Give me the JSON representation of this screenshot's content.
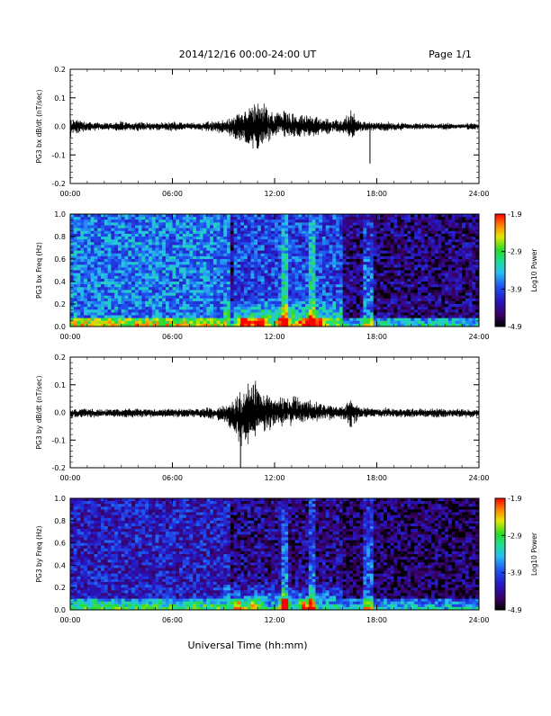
{
  "header": {
    "title": "2014/12/16  00:00-24:00 UT",
    "page": "Page 1/1"
  },
  "chart_data": [
    {
      "type": "line",
      "ylabel": "PG3 bx dB/dt (nT/sec)",
      "ylim": [
        -0.2,
        0.2
      ],
      "yticks": [
        "0.2",
        "0.1",
        "0.0",
        "-0.1",
        "-0.2"
      ],
      "xlim": [
        "00:00",
        "24:00"
      ],
      "xticks": [
        "00:00",
        "06:00",
        "12:00",
        "18:00",
        "24:00"
      ],
      "series": [
        {
          "color": "#000000",
          "x_hours": [
            0,
            0.5,
            1,
            1.5,
            2,
            2.5,
            3,
            3.5,
            4,
            4.5,
            5,
            5.5,
            6,
            6.5,
            7,
            7.5,
            8,
            8.5,
            9,
            9.5,
            10,
            10.5,
            11,
            11.5,
            12,
            12.5,
            13,
            13.5,
            14,
            14.5,
            15,
            15.5,
            16,
            16.5,
            17,
            17.5,
            18,
            18.5,
            19,
            19.5,
            20,
            20.5,
            21,
            21.5,
            22,
            22.5,
            23,
            23.5,
            24
          ],
          "env_hi": [
            0.035,
            0.03,
            0.02,
            0.015,
            0.015,
            0.015,
            0.02,
            0.015,
            0.02,
            0.015,
            0.015,
            0.015,
            0.02,
            0.015,
            0.015,
            0.015,
            0.02,
            0.02,
            0.025,
            0.035,
            0.06,
            0.08,
            0.1,
            0.08,
            0.06,
            0.065,
            0.05,
            0.04,
            0.05,
            0.04,
            0.03,
            0.03,
            0.025,
            0.065,
            0.02,
            0.02,
            0.015,
            0.02,
            0.015,
            0.015,
            0.01,
            0.015,
            0.01,
            0.01,
            0.015,
            0.01,
            0.01,
            0.015,
            0.01
          ],
          "env_lo": [
            -0.05,
            -0.025,
            -0.02,
            -0.015,
            -0.015,
            -0.015,
            -0.025,
            -0.015,
            -0.02,
            -0.015,
            -0.015,
            -0.015,
            -0.02,
            -0.015,
            -0.015,
            -0.015,
            -0.02,
            -0.02,
            -0.03,
            -0.04,
            -0.065,
            -0.08,
            -0.09,
            -0.07,
            -0.05,
            -0.04,
            -0.05,
            -0.04,
            -0.045,
            -0.04,
            -0.03,
            -0.025,
            -0.025,
            -0.06,
            -0.02,
            -0.02,
            -0.015,
            -0.02,
            -0.015,
            -0.015,
            -0.01,
            -0.015,
            -0.01,
            -0.01,
            -0.015,
            -0.01,
            -0.01,
            -0.015,
            -0.01
          ],
          "annotations": [
            {
              "x_hour": 17.6,
              "y": -0.13
            }
          ]
        }
      ]
    },
    {
      "type": "heatmap",
      "ylabel": "PG3 bx Freq (Hz)",
      "ylim": [
        0.0,
        1.0
      ],
      "yticks": [
        "1.0",
        "0.8",
        "0.6",
        "0.4",
        "0.2",
        "0.0"
      ],
      "xlim": [
        "00:00",
        "24:00"
      ],
      "xticks": [
        "00:00",
        "06:00",
        "12:00",
        "18:00",
        "24:00"
      ],
      "colorbar": {
        "label": "Log10 Power",
        "ticks": [
          "-1.9",
          "-2.9",
          "-3.9",
          "-4.9"
        ],
        "range": [
          -4.9,
          -1.9
        ]
      },
      "features": {
        "quiet_level": -3.7,
        "night_level": -4.5,
        "transition_hour": 9.5,
        "hotspot_hours": [
          10.2,
          11.0,
          12.5,
          13.8,
          14.6
        ],
        "bursts_hours": [
          12.6,
          14.2,
          17.5
        ],
        "low_freq_band_max_hz": 0.08
      }
    },
    {
      "type": "line",
      "ylabel": "PG3 by dB/dt (nT/sec)",
      "ylim": [
        -0.2,
        0.2
      ],
      "yticks": [
        "0.2",
        "0.1",
        "0.0",
        "-0.1",
        "-0.2"
      ],
      "xlim": [
        "00:00",
        "24:00"
      ],
      "xticks": [
        "00:00",
        "06:00",
        "12:00",
        "18:00",
        "24:00"
      ],
      "series": [
        {
          "color": "#000000",
          "x_hours": [
            0,
            0.5,
            1,
            1.5,
            2,
            2.5,
            3,
            3.5,
            4,
            4.5,
            5,
            5.5,
            6,
            6.5,
            7,
            7.5,
            8,
            8.5,
            9,
            9.5,
            10,
            10.5,
            11,
            11.5,
            12,
            12.5,
            13,
            13.5,
            14,
            14.5,
            15,
            15.5,
            16,
            16.5,
            17,
            17.5,
            18,
            18.5,
            19,
            19.5,
            20,
            20.5,
            21,
            21.5,
            22,
            22.5,
            23,
            23.5,
            24
          ],
          "env_hi": [
            0.015,
            0.015,
            0.015,
            0.015,
            0.015,
            0.015,
            0.015,
            0.015,
            0.015,
            0.015,
            0.015,
            0.015,
            0.015,
            0.015,
            0.015,
            0.015,
            0.02,
            0.02,
            0.03,
            0.05,
            0.09,
            0.12,
            0.12,
            0.09,
            0.07,
            0.06,
            0.07,
            0.05,
            0.05,
            0.04,
            0.03,
            0.03,
            0.025,
            0.06,
            0.02,
            0.02,
            0.015,
            0.02,
            0.015,
            0.015,
            0.015,
            0.015,
            0.015,
            0.015,
            0.015,
            0.015,
            0.015,
            0.015,
            0.01
          ],
          "env_lo": [
            -0.025,
            -0.02,
            -0.02,
            -0.02,
            -0.02,
            -0.02,
            -0.02,
            -0.02,
            -0.02,
            -0.02,
            -0.02,
            -0.02,
            -0.02,
            -0.02,
            -0.02,
            -0.02,
            -0.025,
            -0.03,
            -0.04,
            -0.07,
            -0.15,
            -0.12,
            -0.1,
            -0.08,
            -0.06,
            -0.05,
            -0.05,
            -0.04,
            -0.04,
            -0.035,
            -0.03,
            -0.03,
            -0.03,
            -0.06,
            -0.025,
            -0.02,
            -0.02,
            -0.02,
            -0.02,
            -0.02,
            -0.02,
            -0.02,
            -0.02,
            -0.02,
            -0.02,
            -0.02,
            -0.02,
            -0.02,
            -0.02
          ],
          "annotations": [
            {
              "x_hour": 10.0,
              "y": -0.2
            }
          ]
        }
      ]
    },
    {
      "type": "heatmap",
      "ylabel": "PG3 by Freq (Hz)",
      "ylim": [
        0.0,
        1.0
      ],
      "yticks": [
        "1.0",
        "0.8",
        "0.6",
        "0.4",
        "0.2",
        "0.0"
      ],
      "xlim": [
        "00:00",
        "24:00"
      ],
      "xticks": [
        "00:00",
        "06:00",
        "12:00",
        "18:00",
        "24:00"
      ],
      "colorbar": {
        "label": "Log10 Power",
        "ticks": [
          "-1.9",
          "-2.9",
          "-3.9",
          "-4.9"
        ],
        "range": [
          -4.9,
          -1.9
        ]
      },
      "features": {
        "quiet_level": -4.2,
        "night_level": -4.6,
        "transition_hour": 9.5,
        "hotspot_hours": [
          9.8,
          10.8,
          12.6,
          13.8
        ],
        "bursts_hours": [
          12.6,
          14.2,
          17.5
        ],
        "low_freq_band_max_hz": 0.1
      }
    }
  ],
  "footer": {
    "xlabel": "Universal Time (hh:mm)"
  }
}
